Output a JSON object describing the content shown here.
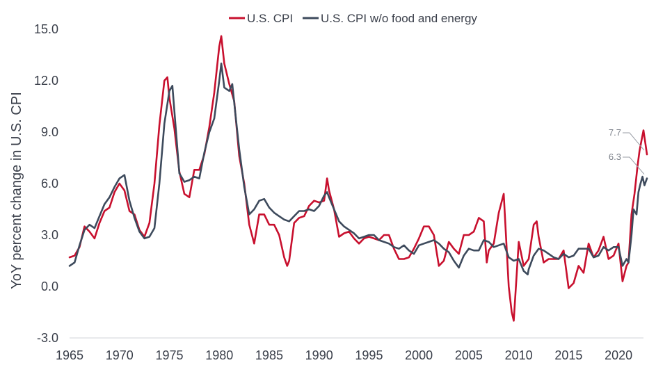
{
  "chart_data": {
    "type": "line",
    "title": "",
    "xlabel": "",
    "ylabel": "YoY percent change in U.S. CPI",
    "xlim": [
      1965,
      2022.5
    ],
    "ylim": [
      -3.0,
      15.0
    ],
    "y_ticks": [
      -3.0,
      0.0,
      3.0,
      6.0,
      9.0,
      12.0,
      15.0
    ],
    "y_tick_labels": [
      "-3.0",
      "0.0",
      "3.0",
      "6.0",
      "9.0",
      "12.0",
      "15.0"
    ],
    "x_ticks": [
      1965,
      1970,
      1975,
      1980,
      1985,
      1990,
      1995,
      2000,
      2005,
      2010,
      2015,
      2020
    ],
    "x_tick_labels": [
      "1965",
      "1970",
      "1975",
      "1980",
      "1985",
      "1990",
      "1995",
      "2000",
      "2005",
      "2010",
      "2015",
      "2020"
    ],
    "grid": false,
    "legend_position": "top",
    "series": [
      {
        "name": "U.S. CPI",
        "color": "#c8102e",
        "points": [
          [
            1965.0,
            1.7
          ],
          [
            1965.5,
            1.8
          ],
          [
            1966.0,
            2.3
          ],
          [
            1966.5,
            3.5
          ],
          [
            1967.0,
            3.2
          ],
          [
            1967.5,
            2.8
          ],
          [
            1968.0,
            3.7
          ],
          [
            1968.5,
            4.4
          ],
          [
            1969.0,
            4.6
          ],
          [
            1969.5,
            5.5
          ],
          [
            1970.0,
            6.0
          ],
          [
            1970.5,
            5.6
          ],
          [
            1971.0,
            4.4
          ],
          [
            1971.5,
            4.2
          ],
          [
            1972.0,
            3.3
          ],
          [
            1972.5,
            2.9
          ],
          [
            1973.0,
            3.7
          ],
          [
            1973.5,
            6.0
          ],
          [
            1974.0,
            9.4
          ],
          [
            1974.5,
            12.0
          ],
          [
            1974.8,
            12.2
          ],
          [
            1975.0,
            11.0
          ],
          [
            1975.5,
            9.2
          ],
          [
            1976.0,
            6.7
          ],
          [
            1976.5,
            5.4
          ],
          [
            1977.0,
            5.2
          ],
          [
            1977.5,
            6.8
          ],
          [
            1978.0,
            6.8
          ],
          [
            1978.5,
            7.7
          ],
          [
            1979.0,
            9.3
          ],
          [
            1979.5,
            11.3
          ],
          [
            1980.0,
            14.0
          ],
          [
            1980.2,
            14.6
          ],
          [
            1980.5,
            13.0
          ],
          [
            1981.0,
            11.8
          ],
          [
            1981.5,
            10.8
          ],
          [
            1982.0,
            7.6
          ],
          [
            1982.5,
            6.0
          ],
          [
            1983.0,
            3.6
          ],
          [
            1983.5,
            2.5
          ],
          [
            1984.0,
            4.2
          ],
          [
            1984.5,
            4.2
          ],
          [
            1985.0,
            3.6
          ],
          [
            1985.5,
            3.6
          ],
          [
            1986.0,
            3.0
          ],
          [
            1986.5,
            1.7
          ],
          [
            1986.8,
            1.2
          ],
          [
            1987.0,
            1.5
          ],
          [
            1987.5,
            3.7
          ],
          [
            1988.0,
            4.0
          ],
          [
            1988.5,
            4.1
          ],
          [
            1989.0,
            4.7
          ],
          [
            1989.5,
            5.0
          ],
          [
            1990.0,
            4.9
          ],
          [
            1990.5,
            5.0
          ],
          [
            1990.8,
            6.3
          ],
          [
            1991.0,
            5.6
          ],
          [
            1991.5,
            4.5
          ],
          [
            1992.0,
            2.9
          ],
          [
            1992.5,
            3.1
          ],
          [
            1993.0,
            3.2
          ],
          [
            1993.5,
            2.8
          ],
          [
            1994.0,
            2.5
          ],
          [
            1994.5,
            2.8
          ],
          [
            1995.0,
            2.9
          ],
          [
            1995.5,
            2.8
          ],
          [
            1996.0,
            2.7
          ],
          [
            1996.5,
            3.0
          ],
          [
            1997.0,
            3.0
          ],
          [
            1997.5,
            2.2
          ],
          [
            1998.0,
            1.6
          ],
          [
            1998.5,
            1.6
          ],
          [
            1999.0,
            1.7
          ],
          [
            1999.5,
            2.2
          ],
          [
            2000.0,
            2.8
          ],
          [
            2000.5,
            3.5
          ],
          [
            2001.0,
            3.5
          ],
          [
            2001.5,
            3.0
          ],
          [
            2002.0,
            1.2
          ],
          [
            2002.5,
            1.5
          ],
          [
            2003.0,
            2.6
          ],
          [
            2003.5,
            2.2
          ],
          [
            2004.0,
            1.9
          ],
          [
            2004.5,
            3.0
          ],
          [
            2005.0,
            3.0
          ],
          [
            2005.5,
            3.2
          ],
          [
            2006.0,
            4.0
          ],
          [
            2006.5,
            3.8
          ],
          [
            2006.8,
            1.4
          ],
          [
            2007.0,
            2.1
          ],
          [
            2007.5,
            2.5
          ],
          [
            2008.0,
            4.3
          ],
          [
            2008.5,
            5.4
          ],
          [
            2009.0,
            0.0
          ],
          [
            2009.3,
            -1.5
          ],
          [
            2009.5,
            -2.0
          ],
          [
            2010.0,
            2.6
          ],
          [
            2010.5,
            1.2
          ],
          [
            2011.0,
            1.6
          ],
          [
            2011.5,
            3.6
          ],
          [
            2011.8,
            3.8
          ],
          [
            2012.0,
            2.9
          ],
          [
            2012.5,
            1.4
          ],
          [
            2013.0,
            1.6
          ],
          [
            2013.5,
            1.6
          ],
          [
            2014.0,
            1.6
          ],
          [
            2014.5,
            2.1
          ],
          [
            2015.0,
            -0.1
          ],
          [
            2015.5,
            0.2
          ],
          [
            2016.0,
            1.2
          ],
          [
            2016.5,
            0.8
          ],
          [
            2017.0,
            2.5
          ],
          [
            2017.5,
            1.7
          ],
          [
            2018.0,
            2.1
          ],
          [
            2018.5,
            2.9
          ],
          [
            2019.0,
            1.6
          ],
          [
            2019.5,
            1.8
          ],
          [
            2020.0,
            2.5
          ],
          [
            2020.4,
            0.3
          ],
          [
            2020.8,
            1.2
          ],
          [
            2021.0,
            1.4
          ],
          [
            2021.3,
            4.2
          ],
          [
            2021.6,
            5.4
          ],
          [
            2021.9,
            7.0
          ],
          [
            2022.1,
            7.9
          ],
          [
            2022.3,
            8.5
          ],
          [
            2022.5,
            9.1
          ],
          [
            2022.7,
            8.3
          ],
          [
            2022.85,
            7.7
          ]
        ]
      },
      {
        "name": "U.S. CPI w/o food and energy",
        "color": "#3d4a5c",
        "points": [
          [
            1965.0,
            1.2
          ],
          [
            1965.5,
            1.4
          ],
          [
            1966.0,
            2.4
          ],
          [
            1966.5,
            3.3
          ],
          [
            1967.0,
            3.6
          ],
          [
            1967.5,
            3.4
          ],
          [
            1968.0,
            4.1
          ],
          [
            1968.5,
            4.8
          ],
          [
            1969.0,
            5.2
          ],
          [
            1969.5,
            5.8
          ],
          [
            1970.0,
            6.3
          ],
          [
            1970.5,
            6.5
          ],
          [
            1971.0,
            5.0
          ],
          [
            1971.5,
            4.0
          ],
          [
            1972.0,
            3.2
          ],
          [
            1972.5,
            2.8
          ],
          [
            1973.0,
            2.9
          ],
          [
            1973.5,
            3.4
          ],
          [
            1974.0,
            6.0
          ],
          [
            1974.5,
            9.5
          ],
          [
            1975.0,
            11.4
          ],
          [
            1975.3,
            11.7
          ],
          [
            1975.6,
            9.5
          ],
          [
            1976.0,
            6.6
          ],
          [
            1976.5,
            6.1
          ],
          [
            1977.0,
            6.2
          ],
          [
            1977.5,
            6.4
          ],
          [
            1978.0,
            6.3
          ],
          [
            1978.5,
            7.8
          ],
          [
            1979.0,
            9.0
          ],
          [
            1979.5,
            9.8
          ],
          [
            1980.0,
            12.0
          ],
          [
            1980.2,
            13.0
          ],
          [
            1980.5,
            11.6
          ],
          [
            1981.0,
            11.4
          ],
          [
            1981.3,
            11.8
          ],
          [
            1981.7,
            9.6
          ],
          [
            1982.0,
            8.0
          ],
          [
            1982.5,
            5.8
          ],
          [
            1983.0,
            4.2
          ],
          [
            1983.5,
            4.5
          ],
          [
            1984.0,
            5.0
          ],
          [
            1984.5,
            5.1
          ],
          [
            1985.0,
            4.6
          ],
          [
            1985.5,
            4.3
          ],
          [
            1986.0,
            4.1
          ],
          [
            1986.5,
            3.9
          ],
          [
            1987.0,
            3.8
          ],
          [
            1987.5,
            4.1
          ],
          [
            1988.0,
            4.4
          ],
          [
            1988.5,
            4.4
          ],
          [
            1989.0,
            4.5
          ],
          [
            1989.5,
            4.4
          ],
          [
            1990.0,
            4.7
          ],
          [
            1990.5,
            5.3
          ],
          [
            1990.8,
            5.5
          ],
          [
            1991.0,
            5.2
          ],
          [
            1991.5,
            4.5
          ],
          [
            1992.0,
            3.8
          ],
          [
            1992.5,
            3.5
          ],
          [
            1993.0,
            3.3
          ],
          [
            1993.5,
            3.1
          ],
          [
            1994.0,
            2.8
          ],
          [
            1994.5,
            2.9
          ],
          [
            1995.0,
            3.0
          ],
          [
            1995.5,
            3.0
          ],
          [
            1996.0,
            2.7
          ],
          [
            1996.5,
            2.6
          ],
          [
            1997.0,
            2.5
          ],
          [
            1997.5,
            2.3
          ],
          [
            1998.0,
            2.2
          ],
          [
            1998.5,
            2.4
          ],
          [
            1999.0,
            2.1
          ],
          [
            1999.5,
            1.9
          ],
          [
            2000.0,
            2.4
          ],
          [
            2000.5,
            2.5
          ],
          [
            2001.0,
            2.6
          ],
          [
            2001.5,
            2.7
          ],
          [
            2002.0,
            2.5
          ],
          [
            2002.5,
            2.2
          ],
          [
            2003.0,
            2.0
          ],
          [
            2003.5,
            1.5
          ],
          [
            2004.0,
            1.1
          ],
          [
            2004.5,
            1.8
          ],
          [
            2005.0,
            2.2
          ],
          [
            2005.5,
            2.1
          ],
          [
            2006.0,
            2.1
          ],
          [
            2006.5,
            2.7
          ],
          [
            2007.0,
            2.6
          ],
          [
            2007.5,
            2.3
          ],
          [
            2008.0,
            2.4
          ],
          [
            2008.5,
            2.5
          ],
          [
            2009.0,
            1.7
          ],
          [
            2009.5,
            1.5
          ],
          [
            2010.0,
            1.6
          ],
          [
            2010.5,
            0.9
          ],
          [
            2010.9,
            0.7
          ],
          [
            2011.0,
            1.0
          ],
          [
            2011.5,
            1.8
          ],
          [
            2012.0,
            2.2
          ],
          [
            2012.5,
            2.1
          ],
          [
            2013.0,
            1.9
          ],
          [
            2013.5,
            1.7
          ],
          [
            2014.0,
            1.6
          ],
          [
            2014.5,
            1.9
          ],
          [
            2015.0,
            1.7
          ],
          [
            2015.5,
            1.8
          ],
          [
            2016.0,
            2.2
          ],
          [
            2016.5,
            2.2
          ],
          [
            2017.0,
            2.2
          ],
          [
            2017.5,
            1.7
          ],
          [
            2018.0,
            1.8
          ],
          [
            2018.5,
            2.3
          ],
          [
            2019.0,
            2.1
          ],
          [
            2019.5,
            2.3
          ],
          [
            2020.0,
            2.3
          ],
          [
            2020.4,
            1.2
          ],
          [
            2020.8,
            1.6
          ],
          [
            2021.0,
            1.4
          ],
          [
            2021.3,
            3.0
          ],
          [
            2021.5,
            4.5
          ],
          [
            2021.8,
            4.2
          ],
          [
            2022.0,
            5.5
          ],
          [
            2022.2,
            6.0
          ],
          [
            2022.4,
            6.4
          ],
          [
            2022.6,
            5.9
          ],
          [
            2022.85,
            6.3
          ]
        ]
      }
    ],
    "annotations": [
      {
        "text": "7.7",
        "series": "U.S. CPI",
        "x": 2022.85,
        "y": 7.7
      },
      {
        "text": "6.3",
        "series": "U.S. CPI w/o food and energy",
        "x": 2022.85,
        "y": 6.3
      }
    ]
  }
}
